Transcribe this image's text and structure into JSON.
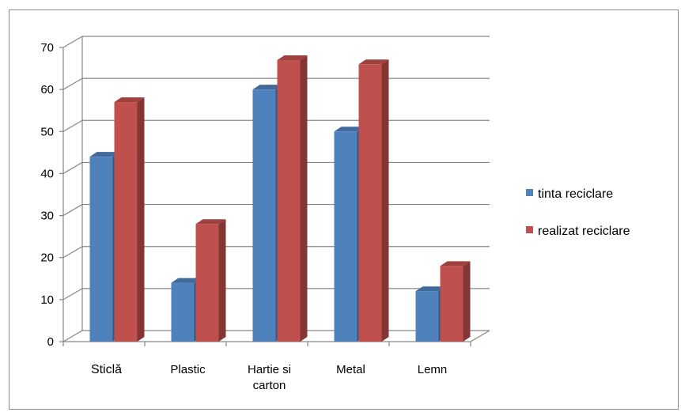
{
  "chart_data": {
    "type": "bar",
    "style": "3d-clustered-column",
    "categories": [
      "Sticlă",
      "Plastic",
      "Hartie si carton",
      "Metal",
      "Lemn"
    ],
    "series": [
      {
        "name": "tinta reciclare",
        "color": "#4f81bd",
        "values": [
          44,
          14,
          60,
          50,
          12
        ]
      },
      {
        "name": "realizat reciclare",
        "color": "#c0504d",
        "values": [
          57,
          28,
          67,
          66,
          18
        ]
      }
    ],
    "yticks": [
      "0",
      "10",
      "20",
      "30",
      "40",
      "50",
      "60",
      "70"
    ],
    "ylim": [
      0,
      70
    ],
    "grid": true,
    "legend": "right"
  }
}
